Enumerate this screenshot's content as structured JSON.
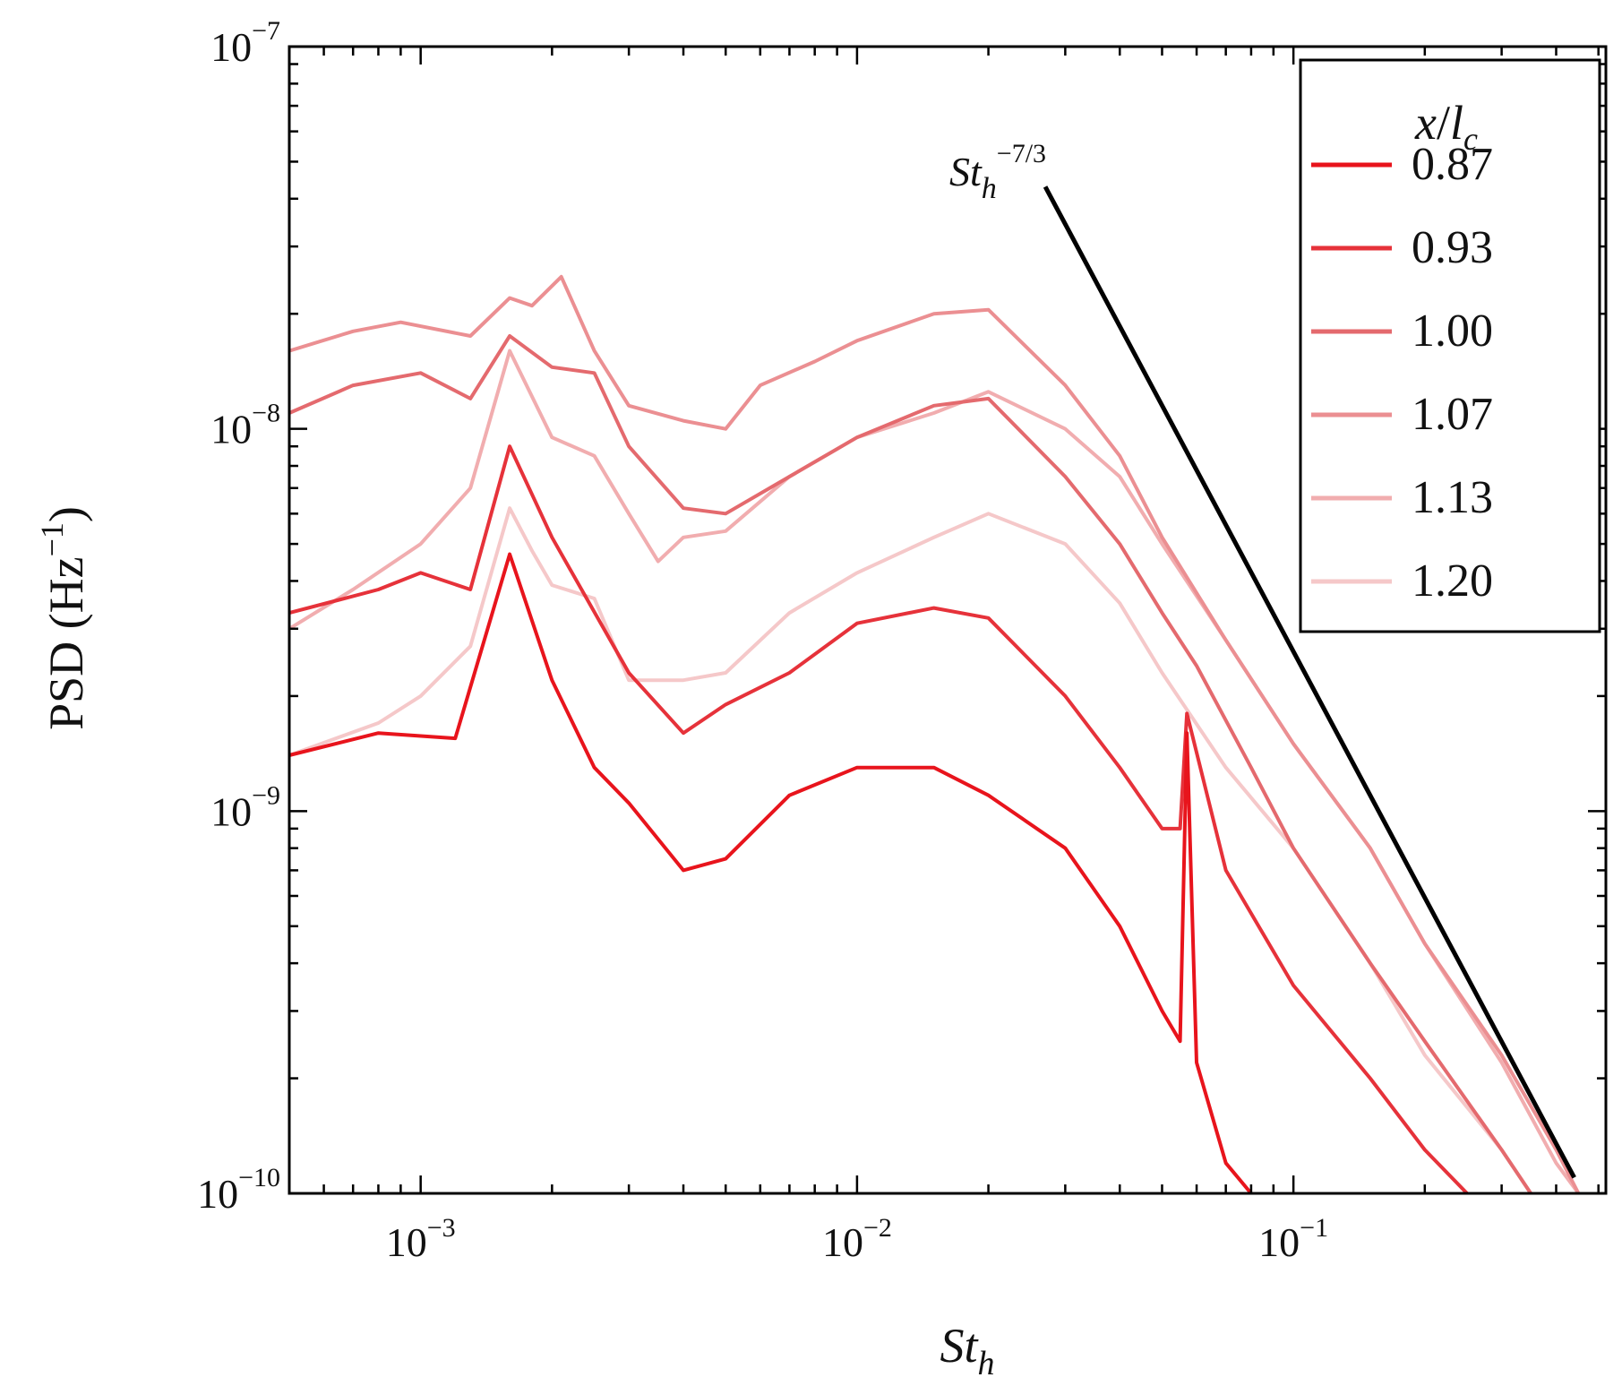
{
  "chart_data": {
    "type": "line",
    "title": "",
    "xlabel": {
      "base": "St",
      "sub": "h"
    },
    "ylabel": {
      "text": "PSD (Hz",
      "sup": "−1",
      "close": ")"
    },
    "x_scale": "log",
    "y_scale": "log",
    "xlim": [
      0.0005,
      0.52
    ],
    "ylim": [
      1e-10,
      1e-07
    ],
    "x_ticks": [
      {
        "value": 0.001,
        "base": "10",
        "exp": "−3"
      },
      {
        "value": 0.01,
        "base": "10",
        "exp": "−2"
      },
      {
        "value": 0.1,
        "base": "10",
        "exp": "−1"
      }
    ],
    "y_ticks": [
      {
        "value": 1e-10,
        "base": "10",
        "exp": "−10"
      },
      {
        "value": 1e-09,
        "base": "10",
        "exp": "−9"
      },
      {
        "value": 1e-08,
        "base": "10",
        "exp": "−8"
      },
      {
        "value": 1e-07,
        "base": "10",
        "exp": "−7"
      }
    ],
    "grid": false,
    "legend": {
      "position": "top-right",
      "title": {
        "var": "x",
        "slash": "/",
        "l": "l",
        "sub": "c"
      }
    },
    "series": [
      {
        "name": "0.87",
        "color": "#e8141c",
        "points": [
          [
            0.0005,
            1.4e-09
          ],
          [
            0.0008,
            1.6e-09
          ],
          [
            0.0012,
            1.55e-09
          ],
          [
            0.0016,
            4.7e-09
          ],
          [
            0.002,
            2.2e-09
          ],
          [
            0.0025,
            1.3e-09
          ],
          [
            0.003,
            1.05e-09
          ],
          [
            0.004,
            7e-10
          ],
          [
            0.005,
            7.5e-10
          ],
          [
            0.007,
            1.1e-09
          ],
          [
            0.01,
            1.3e-09
          ],
          [
            0.015,
            1.3e-09
          ],
          [
            0.02,
            1.1e-09
          ],
          [
            0.03,
            8e-10
          ],
          [
            0.04,
            5e-10
          ],
          [
            0.05,
            3e-10
          ],
          [
            0.055,
            2.5e-10
          ],
          [
            0.057,
            1.6e-09
          ],
          [
            0.06,
            2.2e-10
          ],
          [
            0.07,
            1.2e-10
          ],
          [
            0.08,
            1e-10
          ]
        ]
      },
      {
        "name": "0.93",
        "color": "#e6323a",
        "points": [
          [
            0.0005,
            3.3e-09
          ],
          [
            0.0008,
            3.8e-09
          ],
          [
            0.001,
            4.2e-09
          ],
          [
            0.0013,
            3.8e-09
          ],
          [
            0.0016,
            9e-09
          ],
          [
            0.002,
            5.2e-09
          ],
          [
            0.003,
            2.3e-09
          ],
          [
            0.004,
            1.6e-09
          ],
          [
            0.005,
            1.9e-09
          ],
          [
            0.007,
            2.3e-09
          ],
          [
            0.01,
            3.1e-09
          ],
          [
            0.015,
            3.4e-09
          ],
          [
            0.02,
            3.2e-09
          ],
          [
            0.03,
            2e-09
          ],
          [
            0.04,
            1.3e-09
          ],
          [
            0.05,
            9e-10
          ],
          [
            0.055,
            9e-10
          ],
          [
            0.057,
            1.8e-09
          ],
          [
            0.07,
            7e-10
          ],
          [
            0.1,
            3.5e-10
          ],
          [
            0.15,
            2e-10
          ],
          [
            0.2,
            1.3e-10
          ],
          [
            0.25,
            1e-10
          ]
        ]
      },
      {
        "name": "1.00",
        "color": "#e46a6e",
        "points": [
          [
            0.0005,
            1.1e-08
          ],
          [
            0.0007,
            1.3e-08
          ],
          [
            0.001,
            1.4e-08
          ],
          [
            0.0013,
            1.2e-08
          ],
          [
            0.0016,
            1.75e-08
          ],
          [
            0.002,
            1.45e-08
          ],
          [
            0.0025,
            1.4e-08
          ],
          [
            0.003,
            9e-09
          ],
          [
            0.004,
            6.2e-09
          ],
          [
            0.005,
            6e-09
          ],
          [
            0.007,
            7.5e-09
          ],
          [
            0.01,
            9.5e-09
          ],
          [
            0.015,
            1.15e-08
          ],
          [
            0.02,
            1.2e-08
          ],
          [
            0.03,
            7.5e-09
          ],
          [
            0.04,
            5e-09
          ],
          [
            0.05,
            3.3e-09
          ],
          [
            0.06,
            2.4e-09
          ],
          [
            0.08,
            1.3e-09
          ],
          [
            0.1,
            8e-10
          ],
          [
            0.15,
            4e-10
          ],
          [
            0.2,
            2.5e-10
          ],
          [
            0.3,
            1.3e-10
          ],
          [
            0.35,
            1e-10
          ]
        ]
      },
      {
        "name": "1.07",
        "color": "#eb8f92",
        "points": [
          [
            0.0005,
            1.6e-08
          ],
          [
            0.0007,
            1.8e-08
          ],
          [
            0.0009,
            1.9e-08
          ],
          [
            0.0013,
            1.75e-08
          ],
          [
            0.0016,
            2.2e-08
          ],
          [
            0.0018,
            2.1e-08
          ],
          [
            0.0021,
            2.5e-08
          ],
          [
            0.0025,
            1.6e-08
          ],
          [
            0.003,
            1.15e-08
          ],
          [
            0.004,
            1.05e-08
          ],
          [
            0.005,
            1e-08
          ],
          [
            0.006,
            1.3e-08
          ],
          [
            0.008,
            1.5e-08
          ],
          [
            0.01,
            1.7e-08
          ],
          [
            0.015,
            2e-08
          ],
          [
            0.02,
            2.05e-08
          ],
          [
            0.03,
            1.3e-08
          ],
          [
            0.04,
            8.5e-09
          ],
          [
            0.05,
            5.2e-09
          ],
          [
            0.07,
            2.8e-09
          ],
          [
            0.1,
            1.5e-09
          ],
          [
            0.15,
            8e-10
          ],
          [
            0.2,
            4.5e-10
          ],
          [
            0.3,
            2.3e-10
          ],
          [
            0.4,
            1.3e-10
          ],
          [
            0.45,
            1e-10
          ]
        ]
      },
      {
        "name": "1.13",
        "color": "#f1adaf",
        "points": [
          [
            0.0005,
            3e-09
          ],
          [
            0.0007,
            3.8e-09
          ],
          [
            0.001,
            5e-09
          ],
          [
            0.0013,
            7e-09
          ],
          [
            0.0016,
            1.6e-08
          ],
          [
            0.002,
            9.5e-09
          ],
          [
            0.0025,
            8.5e-09
          ],
          [
            0.003,
            6e-09
          ],
          [
            0.0035,
            4.5e-09
          ],
          [
            0.004,
            5.2e-09
          ],
          [
            0.005,
            5.4e-09
          ],
          [
            0.007,
            7.5e-09
          ],
          [
            0.01,
            9.5e-09
          ],
          [
            0.015,
            1.1e-08
          ],
          [
            0.02,
            1.25e-08
          ],
          [
            0.03,
            1e-08
          ],
          [
            0.04,
            7.5e-09
          ],
          [
            0.05,
            5e-09
          ],
          [
            0.07,
            2.8e-09
          ],
          [
            0.1,
            1.5e-09
          ],
          [
            0.15,
            8e-10
          ],
          [
            0.2,
            4.5e-10
          ],
          [
            0.3,
            2.2e-10
          ],
          [
            0.4,
            1.2e-10
          ],
          [
            0.45,
            1e-10
          ]
        ]
      },
      {
        "name": "1.20",
        "color": "#f5c8c9",
        "points": [
          [
            0.0005,
            1.4e-09
          ],
          [
            0.0008,
            1.7e-09
          ],
          [
            0.001,
            2e-09
          ],
          [
            0.0013,
            2.7e-09
          ],
          [
            0.0016,
            6.2e-09
          ],
          [
            0.0018,
            4.8e-09
          ],
          [
            0.002,
            3.9e-09
          ],
          [
            0.0025,
            3.6e-09
          ],
          [
            0.003,
            2.2e-09
          ],
          [
            0.004,
            2.2e-09
          ],
          [
            0.005,
            2.3e-09
          ],
          [
            0.007,
            3.3e-09
          ],
          [
            0.01,
            4.2e-09
          ],
          [
            0.015,
            5.2e-09
          ],
          [
            0.02,
            6e-09
          ],
          [
            0.03,
            5e-09
          ],
          [
            0.04,
            3.5e-09
          ],
          [
            0.05,
            2.3e-09
          ],
          [
            0.07,
            1.3e-09
          ],
          [
            0.1,
            8e-10
          ],
          [
            0.15,
            4e-10
          ],
          [
            0.2,
            2.3e-10
          ],
          [
            0.3,
            1.3e-10
          ],
          [
            0.35,
            1e-10
          ]
        ]
      }
    ],
    "reference_line": {
      "color": "#000000",
      "points": [
        [
          0.027,
          4.3e-08
        ],
        [
          0.44,
          1.1e-10
        ]
      ],
      "label": {
        "base": "St",
        "sub": "h",
        "sup": "−7/3"
      }
    }
  }
}
